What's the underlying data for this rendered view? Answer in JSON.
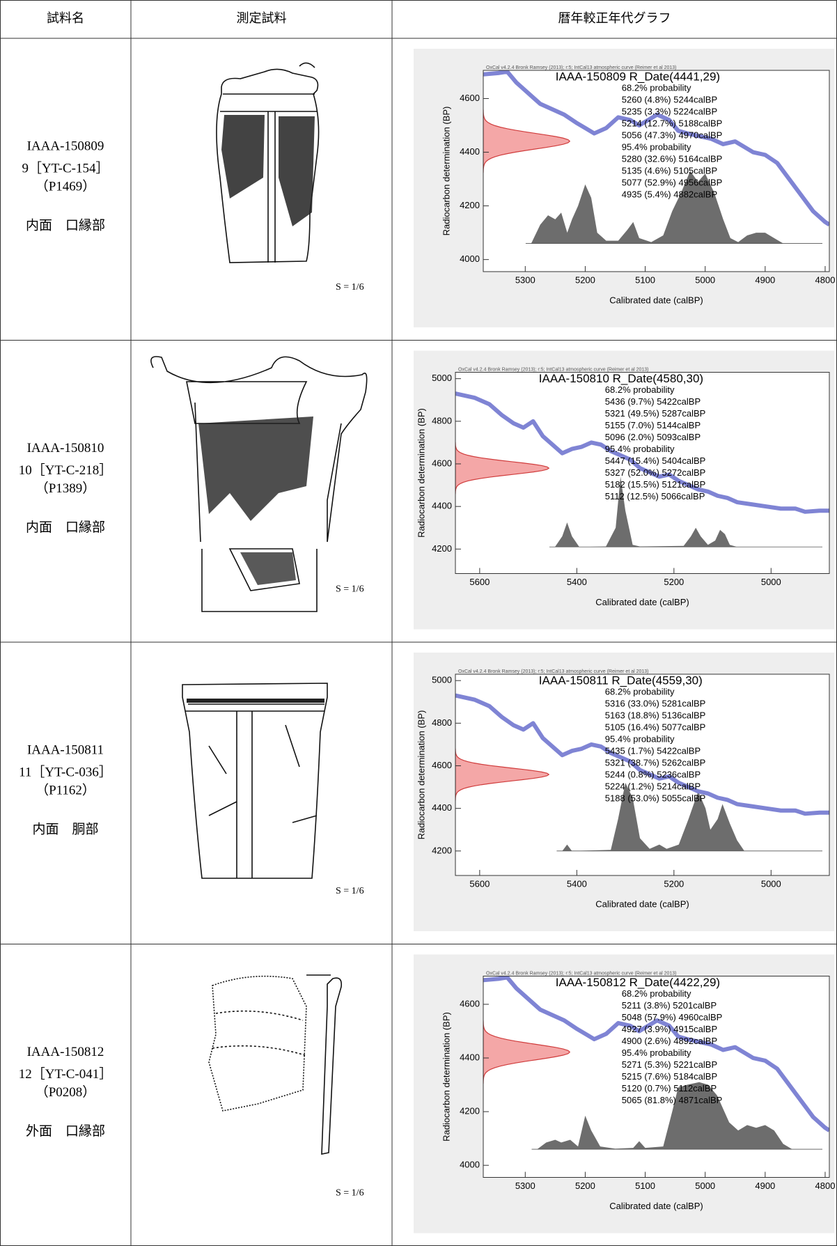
{
  "header": [
    "試料名",
    "測定試料",
    "暦年較正年代グラフ"
  ],
  "rows": [
    {
      "sample_id": "IAAA-150809",
      "sample_no": "9［YT-C-154］",
      "sample_code": "（P1469）",
      "part": "内面　口縁部",
      "scale": "S = 1/6",
      "chart": {
        "type": "calibration",
        "note": "OxCal v4.2.4 Bronk Ramsey (2013); r:5; IntCal13 atmospheric curve (Reimer et al 2013)",
        "title": "IAAA-150809 R_Date(4441,29)",
        "lines": [
          "68.2% probability",
          "5260 (4.8%) 5244calBP",
          "5235 (3.3%) 5224calBP",
          "5214 (12.7%) 5188calBP",
          "5056 (47.3%) 4970calBP",
          "95.4% probability",
          "5280 (32.6%) 5164calBP",
          "5135 (4.6%) 5105calBP",
          "5077 (52.9%) 4956calBP",
          "4935 (5.4%) 4882calBP"
        ],
        "xlabel": "Calibrated date (calBP)",
        "ylabel": "Radiocarbon determination (BP)",
        "xlim": [
          5370,
          4793
        ],
        "ylim": [
          3955,
          4705
        ],
        "xticks": [
          5300,
          5200,
          5100,
          5000,
          4900,
          4800
        ],
        "yticks": [
          4000,
          4200,
          4400,
          4600
        ],
        "measurement": {
          "mean": 4441,
          "sd": 29
        },
        "curve": {
          "x": [
            5370,
            5345,
            5330,
            5315,
            5295,
            5275,
            5255,
            5235,
            5215,
            5200,
            5185,
            5165,
            5145,
            5125,
            5110,
            5095,
            5080,
            5060,
            5045,
            5030,
            5010,
            4990,
            4970,
            4950,
            4935,
            4920,
            4900,
            4880,
            4860,
            4840,
            4820,
            4800,
            4793
          ],
          "values": [
            4690,
            4695,
            4700,
            4660,
            4620,
            4580,
            4560,
            4540,
            4510,
            4490,
            4470,
            4490,
            4530,
            4520,
            4500,
            4520,
            4540,
            4520,
            4480,
            4470,
            4460,
            4450,
            4430,
            4440,
            4420,
            4400,
            4390,
            4360,
            4300,
            4240,
            4180,
            4140,
            4130
          ]
        },
        "posterior_base": 4060,
        "posterior": {
          "x": [
            5290,
            5275,
            5262,
            5250,
            5240,
            5230,
            5222,
            5212,
            5200,
            5190,
            5180,
            5165,
            5145,
            5130,
            5120,
            5110,
            5090,
            5070,
            5055,
            5040,
            5025,
            5012,
            5000,
            4985,
            4970,
            4958,
            4945,
            4930,
            4915,
            4900,
            4885,
            4870
          ],
          "values": [
            4060,
            4130,
            4165,
            4150,
            4175,
            4100,
            4150,
            4200,
            4280,
            4230,
            4100,
            4070,
            4070,
            4110,
            4140,
            4080,
            4065,
            4090,
            4180,
            4250,
            4330,
            4290,
            4320,
            4250,
            4150,
            4080,
            4065,
            4090,
            4100,
            4100,
            4080,
            4060
          ]
        }
      }
    },
    {
      "sample_id": "IAAA-150810",
      "sample_no": "10［YT-C-218］",
      "sample_code": "（P1389）",
      "part": "内面　口縁部",
      "scale": "S = 1/6",
      "chart": {
        "type": "calibration",
        "note": "OxCal v4.2.4 Bronk Ramsey (2013); r:5; IntCal13 atmospheric curve (Reimer et al 2013)",
        "title": "IAAA-150810 R_Date(4580,30)",
        "lines": [
          "68.2% probability",
          "5436 (9.7%) 5422calBP",
          "5321 (49.5%) 5287calBP",
          "5155 (7.0%) 5144calBP",
          "5096 (2.0%) 5093calBP",
          "95.4% probability",
          "5447 (15.4%) 5404calBP",
          "5327 (52.0%) 5272calBP",
          "5182 (15.5%) 5121calBP",
          "5112 (12.5%) 5066calBP"
        ],
        "xlabel": "Calibrated date (calBP)",
        "ylabel": "Radiocarbon determination (BP)",
        "xlim": [
          5650,
          4880
        ],
        "ylim": [
          4085,
          5030
        ],
        "xticks": [
          5600,
          5400,
          5200,
          5000
        ],
        "yticks": [
          4200,
          4400,
          4600,
          4800,
          5000
        ],
        "measurement": {
          "mean": 4580,
          "sd": 30
        },
        "curve": {
          "x": [
            5650,
            5610,
            5580,
            5555,
            5530,
            5510,
            5490,
            5470,
            5450,
            5430,
            5410,
            5390,
            5370,
            5350,
            5330,
            5310,
            5290,
            5270,
            5250,
            5230,
            5210,
            5190,
            5170,
            5150,
            5130,
            5110,
            5090,
            5070,
            5040,
            5010,
            4980,
            4950,
            4930,
            4900,
            4880
          ],
          "values": [
            4930,
            4910,
            4880,
            4830,
            4790,
            4770,
            4800,
            4730,
            4690,
            4650,
            4670,
            4680,
            4700,
            4690,
            4660,
            4640,
            4620,
            4580,
            4560,
            4540,
            4550,
            4520,
            4500,
            4480,
            4470,
            4450,
            4440,
            4420,
            4410,
            4400,
            4390,
            4390,
            4375,
            4380,
            4380
          ]
        },
        "posterior_base": 4210,
        "posterior": {
          "x": [
            5445,
            5430,
            5420,
            5410,
            5395,
            5340,
            5320,
            5310,
            5300,
            5285,
            5270,
            5180,
            5165,
            5155,
            5145,
            5130,
            5115,
            5105,
            5095,
            5085,
            5070
          ],
          "values": [
            4210,
            4260,
            4325,
            4260,
            4210,
            4212,
            4300,
            4540,
            4380,
            4220,
            4212,
            4215,
            4260,
            4300,
            4260,
            4220,
            4240,
            4290,
            4270,
            4220,
            4210
          ]
        }
      }
    },
    {
      "sample_id": "IAAA-150811",
      "sample_no": "11［YT-C-036］",
      "sample_code": "（P1162）",
      "part": "内面　胴部",
      "scale": "S = 1/6",
      "chart": {
        "type": "calibration",
        "note": "OxCal v4.2.4 Bronk Ramsey (2013); r:5; IntCal13 atmospheric curve (Reimer et al 2013)",
        "title": "IAAA-150811 R_Date(4559,30)",
        "lines": [
          "68.2% probability",
          "5316 (33.0%) 5281calBP",
          "5163 (18.8%) 5136calBP",
          "5105 (16.4%) 5077calBP",
          "95.4% probability",
          "5435 (1.7%) 5422calBP",
          "5321 (38.7%) 5262calBP",
          "5244 (0.8%) 5236calBP",
          "5224 (1.2%) 5214calBP",
          "5188 (53.0%) 5055calBP"
        ],
        "xlabel": "Calibrated date (calBP)",
        "ylabel": "Radiocarbon determination (BP)",
        "xlim": [
          5650,
          4880
        ],
        "ylim": [
          4085,
          5030
        ],
        "xticks": [
          5600,
          5400,
          5200,
          5000
        ],
        "yticks": [
          4200,
          4400,
          4600,
          4800,
          5000
        ],
        "measurement": {
          "mean": 4559,
          "sd": 30
        },
        "curve": {
          "x": [
            5650,
            5610,
            5580,
            5555,
            5530,
            5510,
            5490,
            5470,
            5450,
            5430,
            5410,
            5390,
            5370,
            5350,
            5330,
            5310,
            5290,
            5270,
            5250,
            5230,
            5210,
            5190,
            5170,
            5150,
            5130,
            5110,
            5090,
            5070,
            5040,
            5010,
            4980,
            4950,
            4930,
            4900,
            4880
          ],
          "values": [
            4930,
            4910,
            4880,
            4830,
            4790,
            4770,
            4800,
            4730,
            4690,
            4650,
            4670,
            4680,
            4700,
            4690,
            4660,
            4640,
            4620,
            4580,
            4560,
            4540,
            4550,
            4520,
            4500,
            4480,
            4470,
            4450,
            4440,
            4420,
            4410,
            4400,
            4390,
            4390,
            4375,
            4380,
            4380
          ]
        },
        "posterior_base": 4200,
        "posterior": {
          "x": [
            5430,
            5420,
            5410,
            5330,
            5315,
            5300,
            5285,
            5270,
            5250,
            5230,
            5215,
            5190,
            5170,
            5150,
            5135,
            5125,
            5110,
            5100,
            5085,
            5070,
            5055
          ],
          "values": [
            4200,
            4230,
            4200,
            4205,
            4350,
            4520,
            4450,
            4260,
            4210,
            4230,
            4210,
            4230,
            4350,
            4480,
            4400,
            4300,
            4350,
            4420,
            4330,
            4250,
            4200
          ]
        }
      }
    },
    {
      "sample_id": "IAAA-150812",
      "sample_no": "12［YT-C-041］",
      "sample_code": "（P0208）",
      "part": "外面　口縁部",
      "scale": "S = 1/6",
      "chart": {
        "type": "calibration",
        "note": "OxCal v4.2.4 Bronk Ramsey (2013); r:5; IntCal13 atmospheric curve (Reimer et al 2013)",
        "title": "IAAA-150812 R_Date(4422,29)",
        "lines": [
          "68.2% probability",
          "5211 (3.8%) 5201calBP",
          "5048 (57.9%) 4960calBP",
          "4927 (3.9%) 4915calBP",
          "4900 (2.6%) 4892calBP",
          "95.4% probability",
          "5271 (5.3%) 5221calBP",
          "5215 (7.6%) 5184calBP",
          "5120 (0.7%) 5112calBP",
          "5065 (81.8%) 4871calBP"
        ],
        "xlabel": "Calibrated date (calBP)",
        "ylabel": "Radiocarbon determination (BP)",
        "xlim": [
          5370,
          4793
        ],
        "ylim": [
          3955,
          4705
        ],
        "xticks": [
          5300,
          5200,
          5100,
          5000,
          4900,
          4800
        ],
        "yticks": [
          4000,
          4200,
          4400,
          4600
        ],
        "measurement": {
          "mean": 4422,
          "sd": 29
        },
        "curve": {
          "x": [
            5370,
            5345,
            5330,
            5315,
            5295,
            5275,
            5255,
            5235,
            5215,
            5200,
            5185,
            5165,
            5145,
            5125,
            5110,
            5095,
            5080,
            5060,
            5045,
            5030,
            5010,
            4990,
            4970,
            4950,
            4935,
            4920,
            4900,
            4880,
            4860,
            4840,
            4820,
            4800,
            4793
          ],
          "values": [
            4690,
            4695,
            4700,
            4660,
            4620,
            4580,
            4560,
            4540,
            4510,
            4490,
            4470,
            4490,
            4530,
            4520,
            4500,
            4520,
            4540,
            4520,
            4480,
            4470,
            4460,
            4450,
            4430,
            4440,
            4420,
            4400,
            4390,
            4360,
            4300,
            4240,
            4180,
            4140,
            4130
          ]
        },
        "posterior_base": 4060,
        "posterior": {
          "x": [
            5280,
            5265,
            5250,
            5240,
            5225,
            5212,
            5200,
            5190,
            5175,
            5150,
            5120,
            5110,
            5100,
            5070,
            5055,
            5045,
            5030,
            5010,
            4995,
            4980,
            4960,
            4945,
            4930,
            4915,
            4900,
            4885,
            4870,
            4855
          ],
          "values": [
            4060,
            4085,
            4095,
            4085,
            4095,
            4070,
            4185,
            4130,
            4070,
            4062,
            4065,
            4090,
            4065,
            4070,
            4200,
            4290,
            4300,
            4310,
            4300,
            4260,
            4160,
            4130,
            4150,
            4140,
            4150,
            4130,
            4080,
            4060
          ]
        }
      }
    }
  ]
}
